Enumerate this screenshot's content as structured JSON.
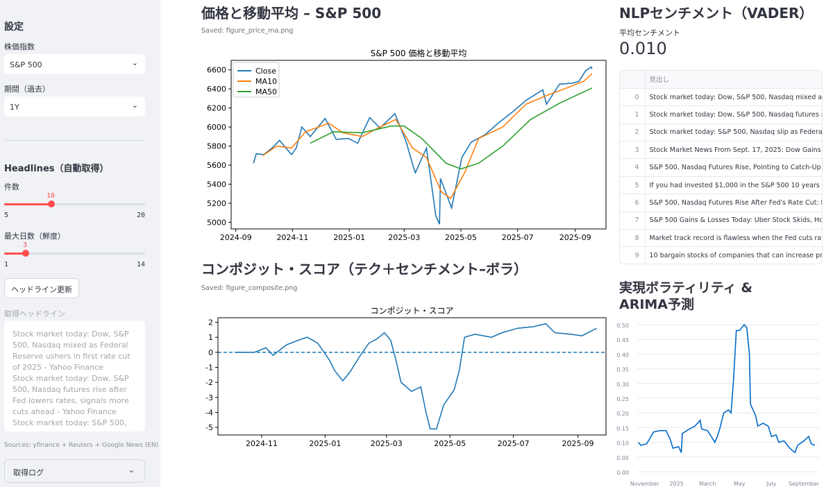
{
  "sidebar": {
    "title": "設定",
    "index_label": "株価指数",
    "index_value": "S&P 500",
    "period_label": "期間（過去）",
    "period_value": "1Y",
    "headlines_title": "Headlines（自動取得）",
    "count_label": "件数",
    "count_value": "10",
    "count_min": "5",
    "count_max": "20",
    "count_fraction": 0.333,
    "days_label": "最大日数（鮮度）",
    "days_value": "3",
    "days_min": "1",
    "days_max": "14",
    "days_fraction": 0.154,
    "refresh_button": "ヘッドライン更新",
    "fetched_label": "取得ヘッドライン",
    "fetched_text": "Stock market today: Dow, S&P 500, Nasdaq mixed as Federal Reserve ushers in first rate cut of 2025 - Yahoo Finance\nStock market today: Dow, S&P 500, Nasdaq futures rise after Fed lowers rates, signals more cuts ahead - Yahoo Finance\nStock market today: S&P 500,",
    "sources": "Sources: yfinance + Reuters + Google News (EN)",
    "log_expander": "取得ログ"
  },
  "price": {
    "heading": "価格と移動平均 – S&P 500",
    "saved": "Saved: figure_price_ma.png"
  },
  "composite": {
    "heading": "コンポジット・スコア（テク＋センチメント–ボラ）",
    "saved": "Saved: figure_composite.png"
  },
  "nlp": {
    "heading": "NLPセンチメント（VADER）",
    "metric_label": "平均センチメント",
    "metric_value": "0.010",
    "table": {
      "column": "見出し",
      "rows": [
        {
          "i": "0",
          "h": "Stock market today: Dow, S&P 500, Nasdaq mixed as Federal Reserve"
        },
        {
          "i": "1",
          "h": "Stock market today: Dow, S&P 500, Nasdaq futures rise after"
        },
        {
          "i": "2",
          "h": "Stock market today: S&P 500, Nasdaq slip as Federal Reserve"
        },
        {
          "i": "3",
          "h": "Stock Market News From Sept. 17, 2025: Dow Gains After Fed"
        },
        {
          "i": "4",
          "h": "S&P 500, Nasdaq Futures Rise, Pointing to Catch-Up Rally —"
        },
        {
          "i": "5",
          "h": "If you had invested $1,000 in the S&P 500 10 years ago, here"
        },
        {
          "i": "6",
          "h": "S&P 500, Nasdaq Futures Rise After Fed's Rate Cut: Markets"
        },
        {
          "i": "7",
          "h": "S&P 500 Gains & Losses Today: Uber Stock Skids, Homebuil"
        },
        {
          "i": "8",
          "h": "Market track record is flawless when the Fed cuts rates with"
        },
        {
          "i": "9",
          "h": "10 bargain stocks of companies that can increase profits fas"
        }
      ]
    }
  },
  "vol": {
    "heading": "実現ボラティリティ & ARIMA予測"
  },
  "chart_data": [
    {
      "type": "line",
      "title": "S&P 500 価格と移動平均",
      "xlim": [
        "2024-08-27",
        "2025-10-04"
      ],
      "ylim": [
        4930,
        6700
      ],
      "xticks": [
        "2024-09",
        "2024-11",
        "2025-01",
        "2025-03",
        "2025-05",
        "2025-07",
        "2025-09"
      ],
      "yticks": [
        5000,
        5200,
        5400,
        5600,
        5800,
        6000,
        6200,
        6400,
        6600
      ],
      "legend": "top-left",
      "grid": false,
      "series": [
        {
          "name": "Close",
          "color": "#1f77b4",
          "points": [
            [
              "2024-09-20",
              5620
            ],
            [
              "2024-09-23",
              5720
            ],
            [
              "2024-10-01",
              5710
            ],
            [
              "2024-10-10",
              5780
            ],
            [
              "2024-10-18",
              5860
            ],
            [
              "2024-10-31",
              5710
            ],
            [
              "2024-11-05",
              5780
            ],
            [
              "2024-11-11",
              6000
            ],
            [
              "2024-11-20",
              5900
            ],
            [
              "2024-12-06",
              6090
            ],
            [
              "2024-12-18",
              5870
            ],
            [
              "2024-12-31",
              5880
            ],
            [
              "2025-01-10",
              5830
            ],
            [
              "2025-01-23",
              6100
            ],
            [
              "2025-02-03",
              5990
            ],
            [
              "2025-02-19",
              6140
            ],
            [
              "2025-03-03",
              5850
            ],
            [
              "2025-03-10",
              5610
            ],
            [
              "2025-03-13",
              5520
            ],
            [
              "2025-03-25",
              5780
            ],
            [
              "2025-04-04",
              5070
            ],
            [
              "2025-04-08",
              4980
            ],
            [
              "2025-04-09",
              5460
            ],
            [
              "2025-04-21",
              5150
            ],
            [
              "2025-05-02",
              5680
            ],
            [
              "2025-05-12",
              5840
            ],
            [
              "2025-05-27",
              5920
            ],
            [
              "2025-06-10",
              6040
            ],
            [
              "2025-06-27",
              6170
            ],
            [
              "2025-07-10",
              6280
            ],
            [
              "2025-07-28",
              6390
            ],
            [
              "2025-08-01",
              6240
            ],
            [
              "2025-08-15",
              6450
            ],
            [
              "2025-08-29",
              6460
            ],
            [
              "2025-09-05",
              6480
            ],
            [
              "2025-09-12",
              6590
            ],
            [
              "2025-09-18",
              6630
            ],
            [
              "2025-09-19",
              6610
            ]
          ]
        },
        {
          "name": "MA10",
          "color": "#ff7f0e",
          "points": [
            [
              "2024-09-30",
              5700
            ],
            [
              "2024-10-15",
              5800
            ],
            [
              "2024-10-31",
              5780
            ],
            [
              "2024-11-15",
              5950
            ],
            [
              "2024-12-10",
              6040
            ],
            [
              "2024-12-25",
              5940
            ],
            [
              "2025-01-15",
              5900
            ],
            [
              "2025-02-01",
              5990
            ],
            [
              "2025-02-20",
              6080
            ],
            [
              "2025-03-10",
              5780
            ],
            [
              "2025-03-25",
              5680
            ],
            [
              "2025-04-10",
              5320
            ],
            [
              "2025-04-20",
              5250
            ],
            [
              "2025-05-05",
              5520
            ],
            [
              "2025-05-20",
              5880
            ],
            [
              "2025-06-15",
              6000
            ],
            [
              "2025-07-10",
              6240
            ],
            [
              "2025-08-01",
              6330
            ],
            [
              "2025-08-20",
              6400
            ],
            [
              "2025-09-10",
              6480
            ],
            [
              "2025-09-19",
              6560
            ]
          ]
        },
        {
          "name": "MA50",
          "color": "#2ca02c",
          "points": [
            [
              "2024-11-20",
              5830
            ],
            [
              "2024-12-15",
              5950
            ],
            [
              "2025-01-15",
              5940
            ],
            [
              "2025-02-15",
              6010
            ],
            [
              "2025-03-01",
              6010
            ],
            [
              "2025-03-20",
              5880
            ],
            [
              "2025-04-15",
              5620
            ],
            [
              "2025-05-01",
              5560
            ],
            [
              "2025-05-20",
              5620
            ],
            [
              "2025-06-15",
              5800
            ],
            [
              "2025-07-15",
              6080
            ],
            [
              "2025-08-15",
              6250
            ],
            [
              "2025-09-19",
              6410
            ]
          ]
        }
      ]
    },
    {
      "type": "line",
      "title": "コンポジット・スコア",
      "xlim": [
        "2024-09-20",
        "2025-09-28"
      ],
      "ylim": [
        -5.5,
        2.3
      ],
      "xticks": [
        "2024-11",
        "2025-01",
        "2025-03",
        "2025-05",
        "2025-07",
        "2025-09"
      ],
      "yticks": [
        -5,
        -4,
        -3,
        -2,
        -1,
        0,
        1,
        2
      ],
      "grid": false,
      "hline": 0,
      "series": [
        {
          "color": "#1f77b4",
          "points": [
            [
              "2024-10-07",
              0
            ],
            [
              "2024-10-25",
              0
            ],
            [
              "2024-11-05",
              0.3
            ],
            [
              "2024-11-12",
              -0.2
            ],
            [
              "2024-11-25",
              0.5
            ],
            [
              "2024-12-10",
              0.9
            ],
            [
              "2024-12-15",
              1.0
            ],
            [
              "2024-12-25",
              0.6
            ],
            [
              "2025-01-05",
              -0.5
            ],
            [
              "2025-01-10",
              -1.2
            ],
            [
              "2025-01-18",
              -1.9
            ],
            [
              "2025-01-25",
              -1.3
            ],
            [
              "2025-02-03",
              -0.3
            ],
            [
              "2025-02-12",
              0.6
            ],
            [
              "2025-02-20",
              0.9
            ],
            [
              "2025-02-27",
              1.3
            ],
            [
              "2025-03-05",
              0.8
            ],
            [
              "2025-03-10",
              -0.5
            ],
            [
              "2025-03-15",
              -2.0
            ],
            [
              "2025-03-25",
              -2.6
            ],
            [
              "2025-04-03",
              -2.3
            ],
            [
              "2025-04-08",
              -4.0
            ],
            [
              "2025-04-12",
              -5.1
            ],
            [
              "2025-04-18",
              -5.1
            ],
            [
              "2025-04-25",
              -3.5
            ],
            [
              "2025-05-05",
              -2.5
            ],
            [
              "2025-05-10",
              -1.2
            ],
            [
              "2025-05-15",
              1.0
            ],
            [
              "2025-05-25",
              1.2
            ],
            [
              "2025-06-10",
              1.0
            ],
            [
              "2025-06-20",
              1.3
            ],
            [
              "2025-07-05",
              1.6
            ],
            [
              "2025-07-20",
              1.7
            ],
            [
              "2025-08-01",
              1.9
            ],
            [
              "2025-08-10",
              1.3
            ],
            [
              "2025-08-25",
              1.2
            ],
            [
              "2025-09-05",
              1.1
            ],
            [
              "2025-09-19",
              1.6
            ]
          ]
        }
      ]
    },
    {
      "type": "line",
      "xlim": [
        "2024-10-18",
        "2025-09-30"
      ],
      "ylim": [
        0,
        0.5
      ],
      "xticks": [
        [
          "2024-11-01",
          "November"
        ],
        [
          "2025-01-01",
          "2025"
        ],
        [
          "2025-03-01",
          "March"
        ],
        [
          "2025-05-01",
          "May"
        ],
        [
          "2025-07-01",
          "July"
        ],
        [
          "2025-09-01",
          "September"
        ]
      ],
      "yticks": [
        "0.00",
        "0.05",
        "0.10",
        "0.15",
        "0.20",
        "0.25",
        "0.30",
        "0.35",
        "0.40",
        "0.45",
        "0.50"
      ],
      "grid": true,
      "series": [
        {
          "color": "#0068c9",
          "points": [
            [
              "2024-10-20",
              0.1
            ],
            [
              "2024-10-25",
              0.09
            ],
            [
              "2024-11-05",
              0.095
            ],
            [
              "2024-11-10",
              0.11
            ],
            [
              "2024-11-18",
              0.135
            ],
            [
              "2024-12-01",
              0.14
            ],
            [
              "2024-12-12",
              0.14
            ],
            [
              "2024-12-20",
              0.11
            ],
            [
              "2024-12-25",
              0.08
            ],
            [
              "2025-01-05",
              0.085
            ],
            [
              "2025-01-10",
              0.065
            ],
            [
              "2025-01-12",
              0.13
            ],
            [
              "2025-01-25",
              0.145
            ],
            [
              "2025-02-05",
              0.155
            ],
            [
              "2025-02-15",
              0.175
            ],
            [
              "2025-02-18",
              0.145
            ],
            [
              "2025-03-01",
              0.14
            ],
            [
              "2025-03-10",
              0.115
            ],
            [
              "2025-03-15",
              0.1
            ],
            [
              "2025-03-20",
              0.12
            ],
            [
              "2025-03-25",
              0.15
            ],
            [
              "2025-04-01",
              0.2
            ],
            [
              "2025-04-10",
              0.21
            ],
            [
              "2025-04-15",
              0.2
            ],
            [
              "2025-04-20",
              0.32
            ],
            [
              "2025-04-25",
              0.48
            ],
            [
              "2025-05-01",
              0.48
            ],
            [
              "2025-05-10",
              0.5
            ],
            [
              "2025-05-15",
              0.49
            ],
            [
              "2025-05-20",
              0.4
            ],
            [
              "2025-05-22",
              0.23
            ],
            [
              "2025-06-01",
              0.19
            ],
            [
              "2025-06-05",
              0.155
            ],
            [
              "2025-06-15",
              0.165
            ],
            [
              "2025-06-25",
              0.155
            ],
            [
              "2025-07-01",
              0.12
            ],
            [
              "2025-07-10",
              0.125
            ],
            [
              "2025-07-15",
              0.1
            ],
            [
              "2025-07-25",
              0.105
            ],
            [
              "2025-08-05",
              0.08
            ],
            [
              "2025-08-15",
              0.065
            ],
            [
              "2025-08-20",
              0.09
            ],
            [
              "2025-09-01",
              0.105
            ],
            [
              "2025-09-10",
              0.12
            ],
            [
              "2025-09-15",
              0.095
            ],
            [
              "2025-09-22",
              0.09
            ]
          ]
        }
      ]
    }
  ]
}
